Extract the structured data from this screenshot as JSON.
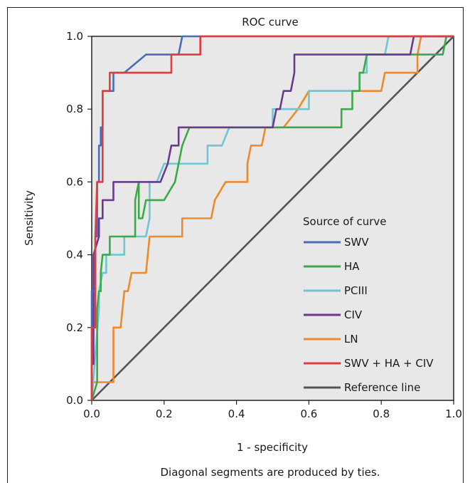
{
  "chart_data": {
    "type": "line",
    "title": "ROC curve",
    "xlabel": "1 - specificity",
    "ylabel": "Sensitivity",
    "xlim": [
      0.0,
      1.0
    ],
    "ylim": [
      0.0,
      1.0
    ],
    "x_ticks": [
      "0.0",
      "0.2",
      "0.4",
      "0.6",
      "0.8",
      "1.0"
    ],
    "y_ticks": [
      "0.0",
      "0.2",
      "0.4",
      "0.6",
      "0.8",
      "1.0"
    ],
    "grid": false,
    "background": "#e8e8e8",
    "legend_title": "Source of curve",
    "legend_position": "lower-right",
    "footnote": "Diagonal segments are produced by ties.",
    "series": [
      {
        "name": "SWV",
        "color": "#4a6cb7",
        "points": [
          [
            0,
            0
          ],
          [
            0,
            0.3
          ],
          [
            0.01,
            0.3
          ],
          [
            0.01,
            0.45
          ],
          [
            0.015,
            0.45
          ],
          [
            0.015,
            0.6
          ],
          [
            0.02,
            0.6
          ],
          [
            0.02,
            0.7
          ],
          [
            0.025,
            0.7
          ],
          [
            0.025,
            0.75
          ],
          [
            0.03,
            0.75
          ],
          [
            0.03,
            0.85
          ],
          [
            0.06,
            0.85
          ],
          [
            0.06,
            0.9
          ],
          [
            0.07,
            0.9
          ],
          [
            0.07,
            0.9
          ],
          [
            0.09,
            0.9
          ],
          [
            0.15,
            0.95
          ],
          [
            0.24,
            0.95
          ],
          [
            0.25,
            1.0
          ],
          [
            1.0,
            1.0
          ]
        ]
      },
      {
        "name": "HA",
        "color": "#3fa84a",
        "points": [
          [
            0,
            0
          ],
          [
            0.015,
            0.05
          ],
          [
            0.015,
            0.25
          ],
          [
            0.02,
            0.3
          ],
          [
            0.025,
            0.3
          ],
          [
            0.025,
            0.35
          ],
          [
            0.03,
            0.4
          ],
          [
            0.05,
            0.4
          ],
          [
            0.05,
            0.45
          ],
          [
            0.12,
            0.45
          ],
          [
            0.12,
            0.55
          ],
          [
            0.13,
            0.6
          ],
          [
            0.13,
            0.5
          ],
          [
            0.14,
            0.5
          ],
          [
            0.15,
            0.55
          ],
          [
            0.2,
            0.55
          ],
          [
            0.23,
            0.6
          ],
          [
            0.24,
            0.65
          ],
          [
            0.25,
            0.7
          ],
          [
            0.27,
            0.75
          ],
          [
            0.49,
            0.75
          ],
          [
            0.49,
            0.75
          ],
          [
            0.69,
            0.75
          ],
          [
            0.69,
            0.8
          ],
          [
            0.72,
            0.8
          ],
          [
            0.72,
            0.85
          ],
          [
            0.74,
            0.85
          ],
          [
            0.74,
            0.9
          ],
          [
            0.75,
            0.9
          ],
          [
            0.76,
            0.95
          ],
          [
            0.97,
            0.95
          ],
          [
            0.97,
            0.95
          ],
          [
            0.98,
            1.0
          ],
          [
            1.0,
            1.0
          ]
        ]
      },
      {
        "name": "PCIII",
        "color": "#6fc6d2",
        "points": [
          [
            0,
            0
          ],
          [
            0.02,
            0.25
          ],
          [
            0.02,
            0.3
          ],
          [
            0.03,
            0.35
          ],
          [
            0.04,
            0.35
          ],
          [
            0.04,
            0.4
          ],
          [
            0.09,
            0.4
          ],
          [
            0.09,
            0.45
          ],
          [
            0.15,
            0.45
          ],
          [
            0.16,
            0.5
          ],
          [
            0.16,
            0.6
          ],
          [
            0.18,
            0.6
          ],
          [
            0.2,
            0.65
          ],
          [
            0.32,
            0.65
          ],
          [
            0.32,
            0.7
          ],
          [
            0.36,
            0.7
          ],
          [
            0.38,
            0.75
          ],
          [
            0.5,
            0.75
          ],
          [
            0.5,
            0.8
          ],
          [
            0.6,
            0.8
          ],
          [
            0.6,
            0.85
          ],
          [
            0.64,
            0.85
          ],
          [
            0.64,
            0.85
          ],
          [
            0.74,
            0.85
          ],
          [
            0.74,
            0.9
          ],
          [
            0.76,
            0.9
          ],
          [
            0.76,
            0.95
          ],
          [
            0.81,
            0.95
          ],
          [
            0.82,
            1.0
          ],
          [
            1.0,
            1.0
          ]
        ]
      },
      {
        "name": "CIV",
        "color": "#6a3a8c",
        "points": [
          [
            0,
            0
          ],
          [
            0,
            0.1
          ],
          [
            0.005,
            0.1
          ],
          [
            0.005,
            0.4
          ],
          [
            0.02,
            0.45
          ],
          [
            0.02,
            0.5
          ],
          [
            0.03,
            0.5
          ],
          [
            0.03,
            0.55
          ],
          [
            0.06,
            0.55
          ],
          [
            0.06,
            0.6
          ],
          [
            0.19,
            0.6
          ],
          [
            0.19,
            0.6
          ],
          [
            0.21,
            0.65
          ],
          [
            0.22,
            0.7
          ],
          [
            0.24,
            0.7
          ],
          [
            0.24,
            0.75
          ],
          [
            0.5,
            0.75
          ],
          [
            0.51,
            0.8
          ],
          [
            0.52,
            0.8
          ],
          [
            0.53,
            0.85
          ],
          [
            0.55,
            0.85
          ],
          [
            0.56,
            0.9
          ],
          [
            0.56,
            0.95
          ],
          [
            0.88,
            0.95
          ],
          [
            0.89,
            1.0
          ],
          [
            1.0,
            1.0
          ]
        ]
      },
      {
        "name": "LN",
        "color": "#ef8a2c",
        "points": [
          [
            0,
            0
          ],
          [
            0,
            0.05
          ],
          [
            0.06,
            0.05
          ],
          [
            0.06,
            0.2
          ],
          [
            0.08,
            0.2
          ],
          [
            0.09,
            0.3
          ],
          [
            0.1,
            0.3
          ],
          [
            0.11,
            0.35
          ],
          [
            0.15,
            0.35
          ],
          [
            0.16,
            0.45
          ],
          [
            0.25,
            0.45
          ],
          [
            0.25,
            0.5
          ],
          [
            0.33,
            0.5
          ],
          [
            0.34,
            0.55
          ],
          [
            0.37,
            0.6
          ],
          [
            0.38,
            0.6
          ],
          [
            0.43,
            0.6
          ],
          [
            0.43,
            0.65
          ],
          [
            0.44,
            0.7
          ],
          [
            0.47,
            0.7
          ],
          [
            0.48,
            0.75
          ],
          [
            0.53,
            0.75
          ],
          [
            0.53,
            0.75
          ],
          [
            0.57,
            0.8
          ],
          [
            0.6,
            0.85
          ],
          [
            0.7,
            0.85
          ],
          [
            0.7,
            0.85
          ],
          [
            0.8,
            0.85
          ],
          [
            0.81,
            0.9
          ],
          [
            0.9,
            0.9
          ],
          [
            0.9,
            0.95
          ],
          [
            0.91,
            1.0
          ],
          [
            1.0,
            1.0
          ]
        ]
      },
      {
        "name": "SWV + HA + CIV",
        "color": "#e23b3b",
        "points": [
          [
            0,
            0
          ],
          [
            0,
            0.2
          ],
          [
            0.01,
            0.2
          ],
          [
            0.01,
            0.45
          ],
          [
            0.015,
            0.6
          ],
          [
            0.03,
            0.6
          ],
          [
            0.03,
            0.85
          ],
          [
            0.05,
            0.85
          ],
          [
            0.05,
            0.9
          ],
          [
            0.16,
            0.9
          ],
          [
            0.16,
            0.9
          ],
          [
            0.22,
            0.9
          ],
          [
            0.22,
            0.95
          ],
          [
            0.3,
            0.95
          ],
          [
            0.3,
            1.0
          ],
          [
            1.0,
            1.0
          ]
        ]
      },
      {
        "name": "Reference line",
        "color": "#555555",
        "points": [
          [
            0,
            0
          ],
          [
            1,
            1
          ]
        ]
      }
    ]
  }
}
